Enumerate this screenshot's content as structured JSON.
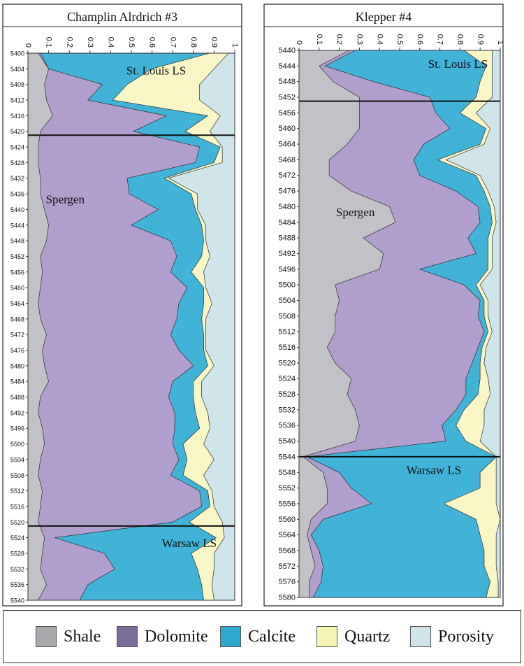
{
  "chart_data": [
    {
      "type": "area",
      "title": "Champlin Alrdrich #3",
      "stacked": true,
      "x_axis": {
        "ticks": [
          "0",
          "0.1",
          "0.2",
          "0.3",
          "0.4",
          "0.5",
          "0.6",
          "0.7",
          "0.8",
          "0.9",
          "1"
        ],
        "range": [
          0,
          1
        ]
      },
      "depth_axis": {
        "ticks": [
          "5400",
          "5404",
          "5408",
          "5412",
          "5416",
          "5420",
          "5424",
          "5428",
          "5432",
          "5436",
          "5440",
          "5444",
          "5448",
          "5452",
          "5456",
          "5460",
          "5464",
          "5468",
          "5472",
          "5476",
          "5480",
          "5484",
          "5488",
          "5492",
          "5496",
          "5500",
          "5504",
          "5508",
          "5512",
          "5516",
          "5520",
          "5524",
          "5528",
          "5532",
          "5536",
          "5540"
        ],
        "range": [
          5400,
          5540
        ],
        "inverted": true
      },
      "formation_boundaries": [
        5421,
        5521
      ],
      "annotations": [
        {
          "text": "St. Louis LS",
          "depth": 5404,
          "x": 0.62
        },
        {
          "text": "Spergen",
          "depth": 5437,
          "x": 0.18
        },
        {
          "text": "Warsaw LS",
          "depth": 5525,
          "x": 0.78
        }
      ],
      "depth": [
        5400,
        5404,
        5408,
        5412,
        5416,
        5420,
        5424,
        5428,
        5432,
        5436,
        5440,
        5444,
        5448,
        5452,
        5456,
        5460,
        5464,
        5468,
        5472,
        5476,
        5480,
        5484,
        5488,
        5492,
        5496,
        5500,
        5504,
        5508,
        5512,
        5516,
        5520,
        5524,
        5528,
        5532,
        5536,
        5540
      ],
      "series": [
        {
          "name": "Shale",
          "values": [
            0.05,
            0.1,
            0.08,
            0.09,
            0.12,
            0.06,
            0.05,
            0.05,
            0.06,
            0.06,
            0.08,
            0.1,
            0.09,
            0.06,
            0.07,
            0.06,
            0.05,
            0.06,
            0.09,
            0.07,
            0.08,
            0.1,
            0.06,
            0.05,
            0.07,
            0.08,
            0.06,
            0.05,
            0.07,
            0.06,
            0.05,
            0.08,
            0.07,
            0.06,
            0.09,
            0.05
          ]
        },
        {
          "name": "Dolomite",
          "values": [
            0.01,
            0.0,
            0.28,
            0.2,
            0.55,
            0.45,
            0.78,
            0.76,
            0.42,
            0.43,
            0.55,
            0.4,
            0.6,
            0.66,
            0.62,
            0.71,
            0.68,
            0.66,
            0.6,
            0.66,
            0.72,
            0.6,
            0.62,
            0.66,
            0.64,
            0.62,
            0.67,
            0.64,
            0.76,
            0.78,
            0.65,
            0.05,
            0.3,
            0.36,
            0.2,
            0.2
          ]
        },
        {
          "name": "Calcite",
          "values": [
            0.82,
            0.5,
            0.12,
            0.12,
            0.2,
            0.25,
            0.1,
            0.09,
            0.18,
            0.3,
            0.18,
            0.34,
            0.16,
            0.12,
            0.1,
            0.08,
            0.12,
            0.12,
            0.16,
            0.12,
            0.07,
            0.1,
            0.12,
            0.1,
            0.12,
            0.05,
            0.04,
            0.06,
            0.04,
            0.04,
            0.08,
            0.78,
            0.42,
            0.4,
            0.55,
            0.6
          ]
        },
        {
          "name": "Quartz",
          "values": [
            0.09,
            0.3,
            0.35,
            0.42,
            0.06,
            0.12,
            0.01,
            0.04,
            0.02,
            0.03,
            0.01,
            0.02,
            0.01,
            0.04,
            0.06,
            0.01,
            0.04,
            0.02,
            0.01,
            0.01,
            0.03,
            0.04,
            0.04,
            0.06,
            0.05,
            0.1,
            0.13,
            0.1,
            0.02,
            0.02,
            0.16,
            0.04,
            0.11,
            0.08,
            0.05,
            0.05
          ]
        },
        {
          "name": "Porosity",
          "values": [
            0.03,
            0.1,
            0.17,
            0.17,
            0.07,
            0.12,
            0.06,
            0.06,
            0.32,
            0.18,
            0.18,
            0.14,
            0.14,
            0.12,
            0.15,
            0.14,
            0.11,
            0.14,
            0.14,
            0.14,
            0.1,
            0.16,
            0.16,
            0.13,
            0.12,
            0.15,
            0.1,
            0.15,
            0.11,
            0.1,
            0.06,
            0.05,
            0.1,
            0.1,
            0.11,
            0.1
          ]
        }
      ]
    },
    {
      "type": "area",
      "title": "Klepper #4",
      "stacked": true,
      "x_axis": {
        "ticks": [
          "0",
          "0.1",
          "0.2",
          "0.3",
          "0.4",
          "0.5",
          "0.6",
          "0.7",
          "0.8",
          "0.9",
          "1"
        ],
        "range": [
          0,
          1
        ]
      },
      "depth_axis": {
        "ticks": [
          "5440",
          "5444",
          "5448",
          "5452",
          "5456",
          "5460",
          "5464",
          "5468",
          "5472",
          "5476",
          "5480",
          "5484",
          "5488",
          "5492",
          "5496",
          "5500",
          "5504",
          "5508",
          "5512",
          "5516",
          "5520",
          "5524",
          "5528",
          "5532",
          "5536",
          "5540",
          "5544",
          "5548",
          "5552",
          "5556",
          "5560",
          "5564",
          "5568",
          "5572",
          "5576",
          "5580"
        ],
        "range": [
          5440,
          5580
        ],
        "inverted": true
      },
      "formation_boundaries": [
        5453,
        5544
      ],
      "annotations": [
        {
          "text": "St. Louis LS",
          "depth": 5443,
          "x": 0.79
        },
        {
          "text": "Spergen",
          "depth": 5481,
          "x": 0.28
        },
        {
          "text": "Warsaw LS",
          "depth": 5547,
          "x": 0.67
        }
      ],
      "depth": [
        5440,
        5444,
        5448,
        5452,
        5456,
        5460,
        5464,
        5468,
        5472,
        5476,
        5480,
        5484,
        5488,
        5492,
        5496,
        5500,
        5504,
        5508,
        5512,
        5516,
        5520,
        5524,
        5528,
        5532,
        5536,
        5540,
        5544,
        5548,
        5552,
        5556,
        5560,
        5564,
        5568,
        5572,
        5576,
        5580
      ],
      "series": [
        {
          "name": "Shale",
          "values": [
            0.25,
            0.1,
            0.17,
            0.3,
            0.3,
            0.3,
            0.24,
            0.15,
            0.15,
            0.26,
            0.45,
            0.48,
            0.32,
            0.42,
            0.4,
            0.18,
            0.2,
            0.18,
            0.18,
            0.14,
            0.18,
            0.26,
            0.24,
            0.28,
            0.3,
            0.28,
            0.02,
            0.12,
            0.14,
            0.14,
            0.06,
            0.04,
            0.06,
            0.08,
            0.05,
            0.05
          ]
        },
        {
          "name": "Dolomite",
          "values": [
            0.03,
            0.03,
            0.2,
            0.35,
            0.38,
            0.45,
            0.38,
            0.42,
            0.45,
            0.52,
            0.44,
            0.42,
            0.52,
            0.46,
            0.2,
            0.64,
            0.7,
            0.71,
            0.74,
            0.75,
            0.68,
            0.57,
            0.59,
            0.5,
            0.41,
            0.45,
            0.02,
            0.08,
            0.12,
            0.22,
            0.06,
            0.02,
            0.04,
            0.04,
            0.06,
            0.02
          ]
        },
        {
          "name": "Calcite",
          "values": [
            0.54,
            0.8,
            0.53,
            0.23,
            0.12,
            0.18,
            0.28,
            0.12,
            0.28,
            0.14,
            0.06,
            0.06,
            0.1,
            0.06,
            0.34,
            0.06,
            0.02,
            0.03,
            0.02,
            0.02,
            0.04,
            0.07,
            0.06,
            0.04,
            0.07,
            0.1,
            0.94,
            0.7,
            0.64,
            0.36,
            0.76,
            0.84,
            0.82,
            0.8,
            0.84,
            0.86
          ]
        },
        {
          "name": "Quartz",
          "values": [
            0.14,
            0.03,
            0.06,
            0.08,
            0.08,
            0.02,
            0.02,
            0.04,
            0.02,
            0.02,
            0.02,
            0.02,
            0.02,
            0.02,
            0.02,
            0.02,
            0.02,
            0.02,
            0.02,
            0.02,
            0.02,
            0.04,
            0.06,
            0.1,
            0.14,
            0.07,
            0.0,
            0.08,
            0.08,
            0.26,
            0.12,
            0.08,
            0.06,
            0.06,
            0.04,
            0.06
          ]
        },
        {
          "name": "Porosity",
          "values": [
            0.04,
            0.04,
            0.04,
            0.04,
            0.12,
            0.05,
            0.08,
            0.27,
            0.1,
            0.06,
            0.03,
            0.02,
            0.04,
            0.04,
            0.04,
            0.1,
            0.06,
            0.06,
            0.04,
            0.07,
            0.08,
            0.06,
            0.05,
            0.08,
            0.08,
            0.1,
            0.02,
            0.02,
            0.02,
            0.02,
            0.0,
            0.02,
            0.02,
            0.02,
            0.01,
            0.01
          ]
        }
      ]
    }
  ],
  "legend": {
    "items": [
      {
        "label": "Shale",
        "color": "#a9a9ad"
      },
      {
        "label": "Dolomite",
        "color": "#7a6d9a"
      },
      {
        "label": "Calcite",
        "color": "#2eaad0"
      },
      {
        "label": "Quartz",
        "color": "#f6f6b4"
      },
      {
        "label": "Porosity",
        "color": "#cfe5e9"
      }
    ]
  },
  "fill_colors": {
    "Shale": "#c3c1c8",
    "Dolomite": "#b09fcd",
    "Calcite": "#41b3d6",
    "Quartz": "#f7f6c4",
    "Porosity": "#cfe5e9"
  }
}
